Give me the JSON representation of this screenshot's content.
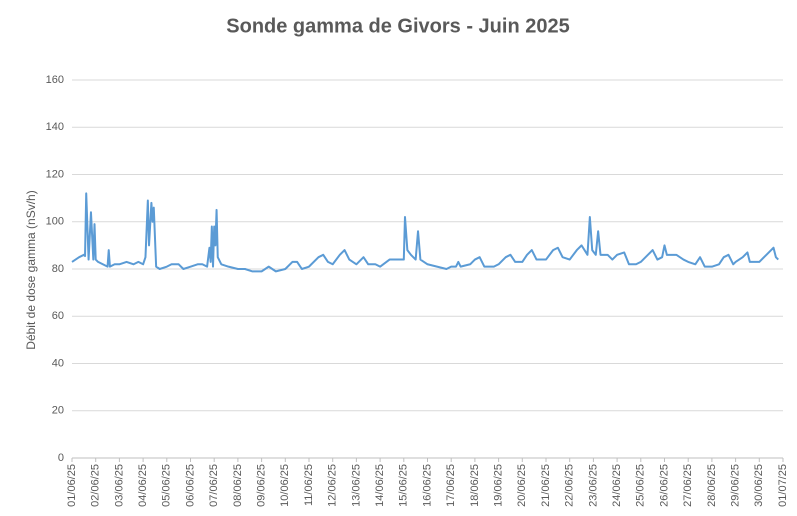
{
  "chart_data": {
    "type": "line",
    "title": "Sonde gamma de Givors - Juin 2025",
    "y_label": "Débit de dose gamma (nSv/h)",
    "x": [
      0,
      0.3,
      0.5,
      0.55,
      0.6,
      0.7,
      0.8,
      0.9,
      0.95,
      1.0,
      1.1,
      1.3,
      1.5,
      1.55,
      1.6,
      1.8,
      2.0,
      2.3,
      2.6,
      2.8,
      3.0,
      3.1,
      3.2,
      3.25,
      3.35,
      3.4,
      3.45,
      3.55,
      3.7,
      4.0,
      4.2,
      4.5,
      4.7,
      5.0,
      5.3,
      5.5,
      5.7,
      5.8,
      5.85,
      5.9,
      5.95,
      6.0,
      6.05,
      6.1,
      6.15,
      6.3,
      6.6,
      7.0,
      7.3,
      7.6,
      8.0,
      8.3,
      8.6,
      9.0,
      9.3,
      9.5,
      9.7,
      10.0,
      10.4,
      10.6,
      10.8,
      11.0,
      11.3,
      11.5,
      11.7,
      12.0,
      12.2,
      12.3,
      12.5,
      12.8,
      13.0,
      13.4,
      13.7,
      14.0,
      14.05,
      14.15,
      14.3,
      14.5,
      14.6,
      14.7,
      15.0,
      15.4,
      15.8,
      16.0,
      16.2,
      16.3,
      16.4,
      16.8,
      17.0,
      17.2,
      17.4,
      17.8,
      18.0,
      18.3,
      18.5,
      18.7,
      19.0,
      19.2,
      19.4,
      19.6,
      20.0,
      20.3,
      20.5,
      20.7,
      21.0,
      21.3,
      21.5,
      21.75,
      21.85,
      21.95,
      22.1,
      22.2,
      22.3,
      22.6,
      22.8,
      23.0,
      23.3,
      23.5,
      23.8,
      24.0,
      24.3,
      24.5,
      24.7,
      24.9,
      25.0,
      25.1,
      25.5,
      25.8,
      26.0,
      26.3,
      26.5,
      26.7,
      27.0,
      27.3,
      27.5,
      27.7,
      27.9,
      28.0,
      28.3,
      28.5,
      28.6,
      29.0,
      29.3,
      29.5,
      29.6,
      29.7,
      29.8
    ],
    "series": [
      {
        "name": "Débit de dose gamma",
        "color": "#5b9bd5",
        "values": [
          83,
          85,
          86,
          85.5,
          112,
          84,
          104,
          84,
          99,
          84,
          83,
          82,
          81,
          88,
          81,
          82,
          82,
          83,
          82,
          83,
          82,
          85,
          109,
          90,
          108,
          100,
          106,
          81,
          80,
          81,
          82,
          82,
          80,
          81,
          82,
          82,
          81,
          89,
          83,
          98,
          81,
          98,
          90,
          105,
          85,
          82,
          81,
          80,
          80,
          79,
          79,
          81,
          79,
          80,
          83,
          83,
          80,
          81,
          85,
          86,
          83,
          82,
          86,
          88,
          84,
          82,
          84,
          85,
          82,
          82,
          81,
          84,
          84,
          84,
          102,
          88,
          86,
          84,
          96,
          84,
          82,
          81,
          80,
          81,
          81,
          83,
          81,
          82,
          84,
          85,
          81,
          81,
          82,
          85,
          86,
          83,
          83,
          86,
          88,
          84,
          84,
          88,
          89,
          85,
          84,
          88,
          90,
          86,
          102,
          88,
          86,
          96,
          86,
          86,
          84,
          86,
          87,
          82,
          82,
          83,
          86,
          88,
          84,
          85,
          90,
          86,
          86,
          84,
          83,
          82,
          85,
          81,
          81,
          82,
          85,
          86,
          82,
          83,
          85,
          87,
          83,
          83,
          86,
          88,
          89,
          85,
          84
        ]
      }
    ],
    "xlim": [
      0,
      30
    ],
    "xticks": [
      {
        "value": 0,
        "label": "01/06/25"
      },
      {
        "value": 1,
        "label": "02/06/25"
      },
      {
        "value": 2,
        "label": "03/06/25"
      },
      {
        "value": 3,
        "label": "04/06/25"
      },
      {
        "value": 4,
        "label": "05/06/25"
      },
      {
        "value": 5,
        "label": "06/06/25"
      },
      {
        "value": 6,
        "label": "07/06/25"
      },
      {
        "value": 7,
        "label": "08/06/25"
      },
      {
        "value": 8,
        "label": "09/06/25"
      },
      {
        "value": 9,
        "label": "10/06/25"
      },
      {
        "value": 10,
        "label": "11/06/25"
      },
      {
        "value": 11,
        "label": "12/06/25"
      },
      {
        "value": 12,
        "label": "13/06/25"
      },
      {
        "value": 13,
        "label": "14/06/25"
      },
      {
        "value": 14,
        "label": "15/06/25"
      },
      {
        "value": 15,
        "label": "16/06/25"
      },
      {
        "value": 16,
        "label": "17/06/25"
      },
      {
        "value": 17,
        "label": "18/06/25"
      },
      {
        "value": 18,
        "label": "19/06/25"
      },
      {
        "value": 19,
        "label": "20/06/25"
      },
      {
        "value": 20,
        "label": "21/06/25"
      },
      {
        "value": 21,
        "label": "22/06/25"
      },
      {
        "value": 22,
        "label": "23/06/25"
      },
      {
        "value": 23,
        "label": "24/06/25"
      },
      {
        "value": 24,
        "label": "25/06/25"
      },
      {
        "value": 25,
        "label": "26/06/25"
      },
      {
        "value": 26,
        "label": "27/06/25"
      },
      {
        "value": 27,
        "label": "28/06/25"
      },
      {
        "value": 28,
        "label": "29/06/25"
      },
      {
        "value": 29,
        "label": "30/06/25"
      },
      {
        "value": 30,
        "label": "01/07/25"
      }
    ],
    "ylim": [
      0,
      160
    ],
    "yticks": [
      0,
      20,
      40,
      60,
      80,
      100,
      120,
      140,
      160
    ],
    "grid": true
  }
}
